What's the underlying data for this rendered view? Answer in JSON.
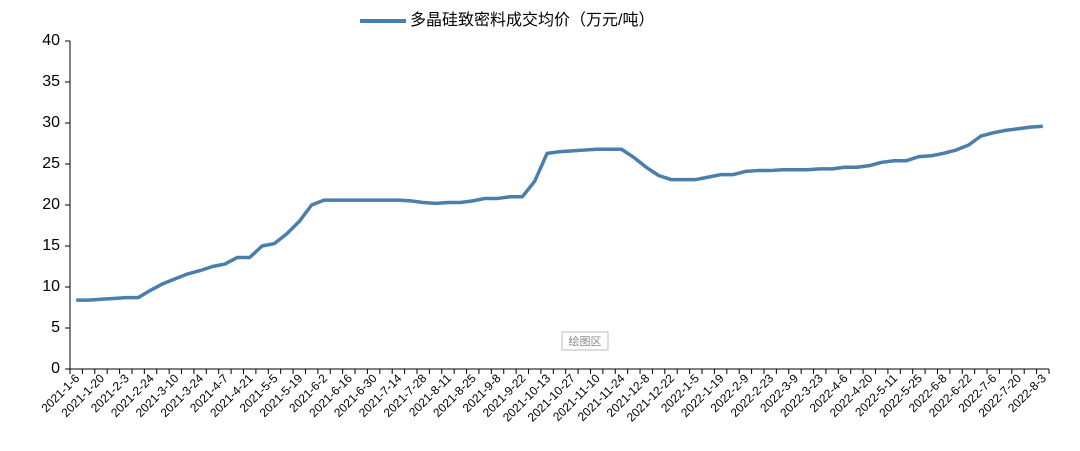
{
  "chart_data": {
    "type": "line",
    "series": [
      {
        "name": "多晶硅致密料成交均价（万元/吨）",
        "color": "#4a7eab",
        "values": [
          8.4,
          8.4,
          8.5,
          8.6,
          8.7,
          8.7,
          9.6,
          10.4,
          11.0,
          11.6,
          12.0,
          12.5,
          12.8,
          13.6,
          13.6,
          15.0,
          15.3,
          16.5,
          18.0,
          20.0,
          20.6,
          20.6,
          20.6,
          20.6,
          20.6,
          20.6,
          20.6,
          20.5,
          20.3,
          20.2,
          20.3,
          20.3,
          20.5,
          20.8,
          20.8,
          21.0,
          21.0,
          22.9,
          26.3,
          26.5,
          26.6,
          26.7,
          26.8,
          26.8,
          26.8,
          25.8,
          24.6,
          23.6,
          23.1,
          23.1,
          23.1,
          23.4,
          23.7,
          23.7,
          24.1,
          24.2,
          24.2,
          24.3,
          24.3,
          24.3,
          24.4,
          24.4,
          24.6,
          24.6,
          24.8,
          25.2,
          25.4,
          25.4,
          25.9,
          26.0,
          26.3,
          26.7,
          27.3,
          28.4,
          28.8,
          29.1,
          29.3,
          29.5,
          29.6
        ]
      }
    ],
    "categories": [
      "2021-1-6",
      null,
      "2021-1-20",
      null,
      "2021-2-3",
      null,
      "2021-2-24",
      null,
      "2021-3-10",
      null,
      "2021-3-24",
      null,
      "2021-4-7",
      null,
      "2021-4-21",
      null,
      "2021-5-5",
      null,
      "2021-5-19",
      null,
      "2021-6-2",
      null,
      "2021-6-16",
      null,
      "2021-6-30",
      null,
      "2021-7-14",
      null,
      "2021-7-28",
      null,
      "2021-8-11",
      null,
      "2021-8-25",
      null,
      "2021-9-8",
      null,
      "2021-9-22",
      null,
      "2021-10-13",
      null,
      "2021-10-27",
      null,
      "2021-11-10",
      null,
      "2021-11-24",
      null,
      "2021-12-8",
      null,
      "2021-12-22",
      null,
      "2022-1-5",
      null,
      "2022-1-19",
      null,
      "2022-2-9",
      null,
      "2022-2-23",
      null,
      "2022-3-9",
      null,
      "2022-3-23",
      null,
      "2022-4-6",
      null,
      "2022-4-20",
      null,
      "2022-5-11",
      null,
      "2022-5-25",
      null,
      "2022-6-8",
      null,
      "2022-6-22",
      null,
      "2022-7-6",
      null,
      "2022-7-20",
      null,
      "2022-8-3"
    ],
    "ylim": [
      0,
      40
    ],
    "yticks": [
      0,
      5,
      10,
      15,
      20,
      25,
      30,
      35,
      40
    ],
    "grid": false,
    "legend": "top",
    "plot_area_label": "绘图区"
  }
}
